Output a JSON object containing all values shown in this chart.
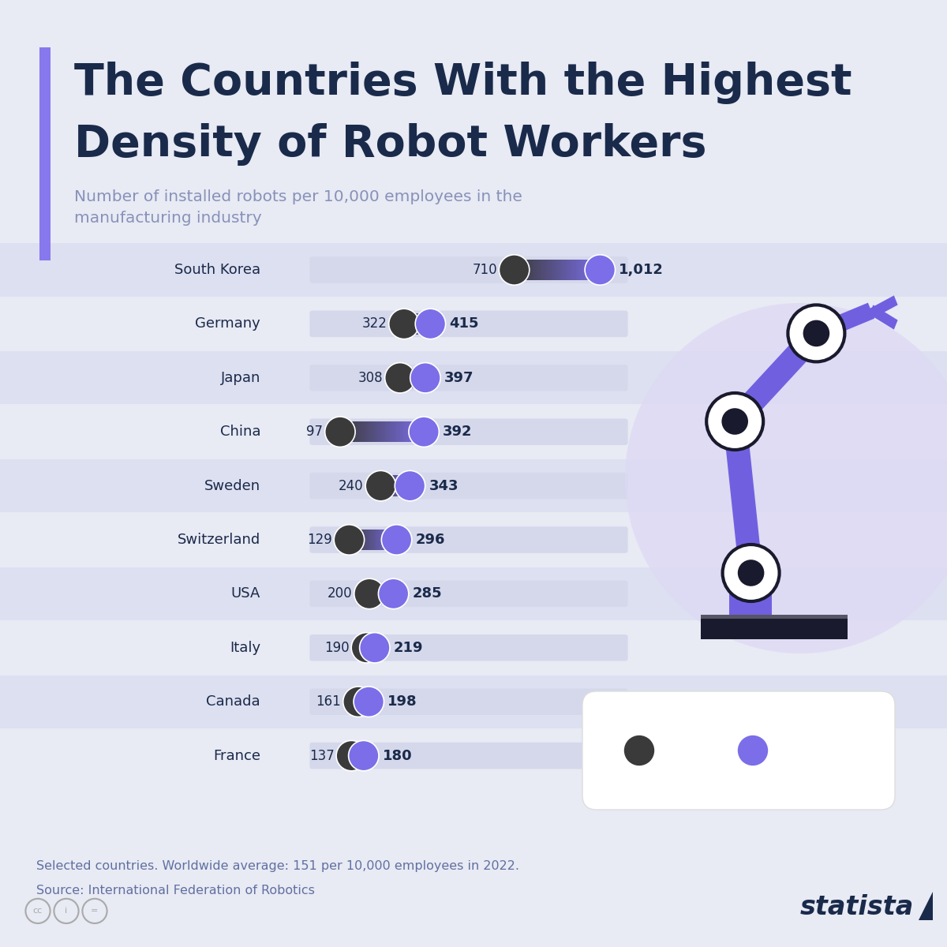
{
  "title_line1": "The Countries With the Highest",
  "title_line2": "Density of Robot Workers",
  "subtitle": "Number of installed robots per 10,000 employees in the\nmanufacturing industry",
  "countries": [
    "South Korea",
    "Germany",
    "Japan",
    "China",
    "Sweden",
    "Switzerland",
    "USA",
    "Italy",
    "Canada",
    "France"
  ],
  "values_2017": [
    710,
    322,
    308,
    97,
    240,
    129,
    200,
    190,
    161,
    137
  ],
  "values_2022": [
    1012,
    415,
    397,
    392,
    343,
    296,
    285,
    219,
    198,
    180
  ],
  "bg_color": "#e8eaf4",
  "title_color": "#1a2a4a",
  "subtitle_color": "#8892b8",
  "bar_bg_color": "#d5d8eb",
  "dot_2017_color": "#3a3a3a",
  "dot_2022_color": "#7b6ee8",
  "stripe_even_color": "#dde0f0",
  "stripe_odd_color": "#e8eaf4",
  "footnote_color": "#6070a0",
  "value_color": "#1a2a4a",
  "country_label_color": "#1a2a4a",
  "accent_purple": "#8878ee",
  "arm_color": "#7060e0",
  "arm_dark": "#1a1a2e",
  "robot_circle_color": "#ddd8f5",
  "legend_box_color": "#ffffff",
  "statista_color": "#1a2a4a"
}
